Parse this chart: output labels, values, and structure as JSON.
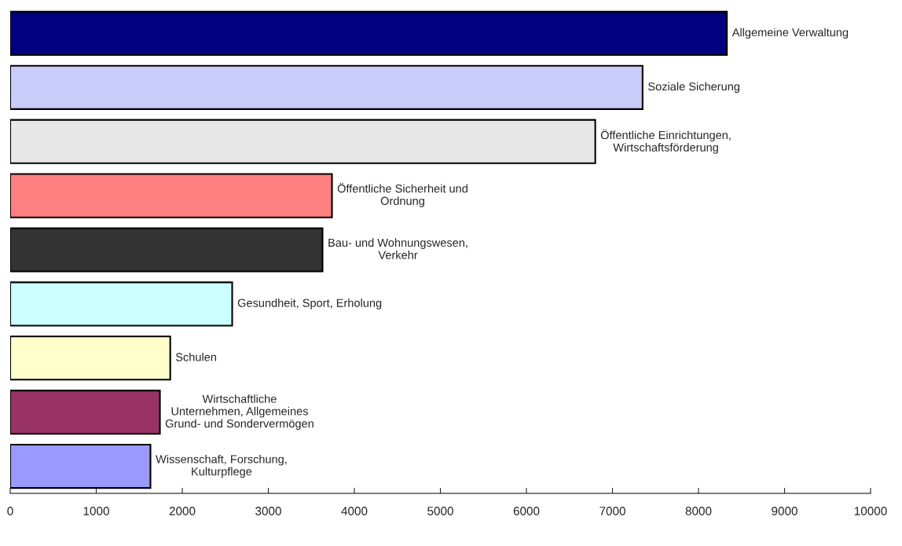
{
  "chart_data": {
    "type": "bar",
    "orientation": "horizontal",
    "categories": [
      "Allgemeine Verwaltung",
      "Soziale Sicherung",
      "Öffentliche Einrichtungen,\nWirtschaftsförderung",
      "Öffentliche Sicherheit und\nOrdnung",
      "Bau- und Wohnungswesen,\nVerkehr",
      "Gesundheit, Sport, Erholung",
      "Schulen",
      "Wirtschaftliche\nUnternehmen, Allgemeines\nGrund- und Sondervermögen",
      "Wissenschaft, Forschung,\nKulturpflege"
    ],
    "values": [
      8330,
      7350,
      6800,
      3740,
      3630,
      2580,
      1860,
      1740,
      1630
    ],
    "colors": [
      "#000080",
      "#c8ccf8",
      "#e8e8e8",
      "#ff8080",
      "#333333",
      "#ccffff",
      "#ffffcc",
      "#993366",
      "#9999ff"
    ],
    "xlim": [
      0,
      10000
    ],
    "xticks": [
      0,
      1000,
      2000,
      3000,
      4000,
      5000,
      6000,
      7000,
      8000,
      9000,
      10000
    ],
    "grid": false,
    "legend": false
  }
}
